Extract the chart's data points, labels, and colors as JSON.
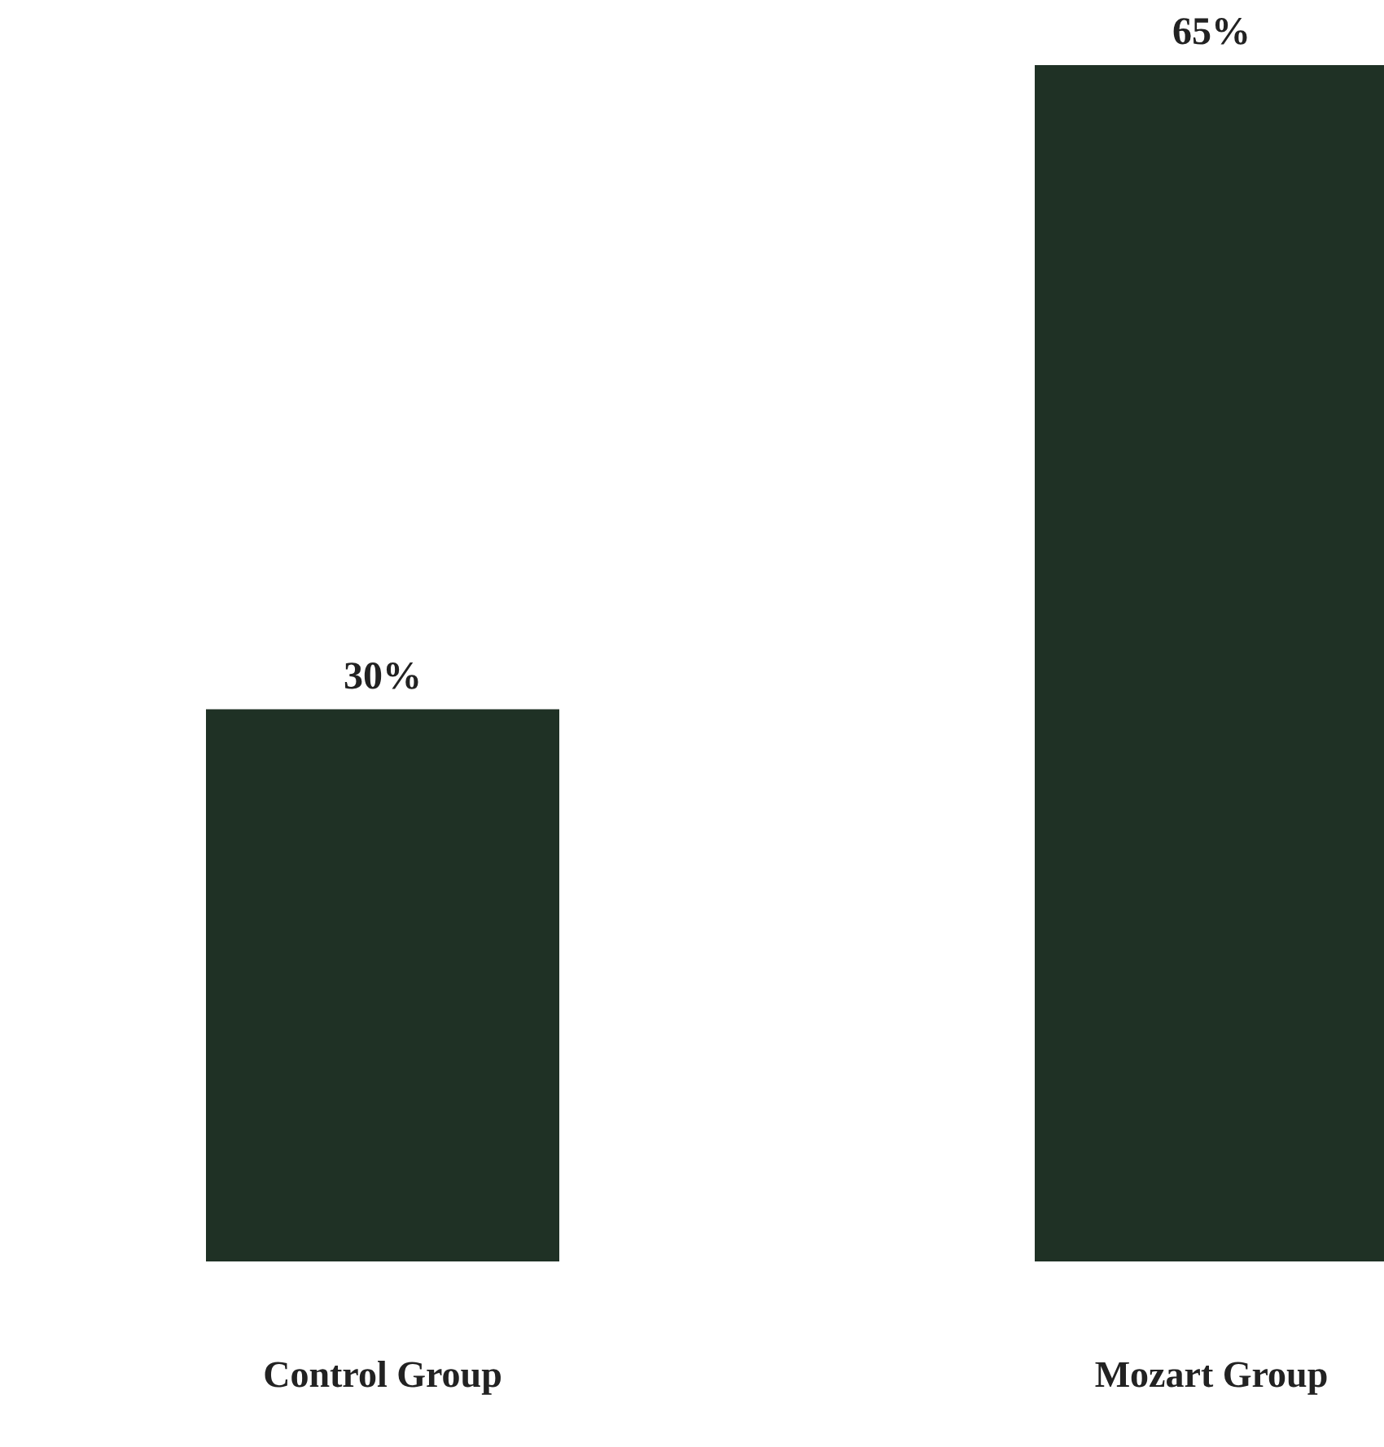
{
  "chart_data": {
    "type": "bar",
    "categories": [
      "Control Group",
      "Mozart Group"
    ],
    "values": [
      30,
      65
    ],
    "color": "#1f3125",
    "value_labels": [
      "30%",
      "65%"
    ]
  }
}
